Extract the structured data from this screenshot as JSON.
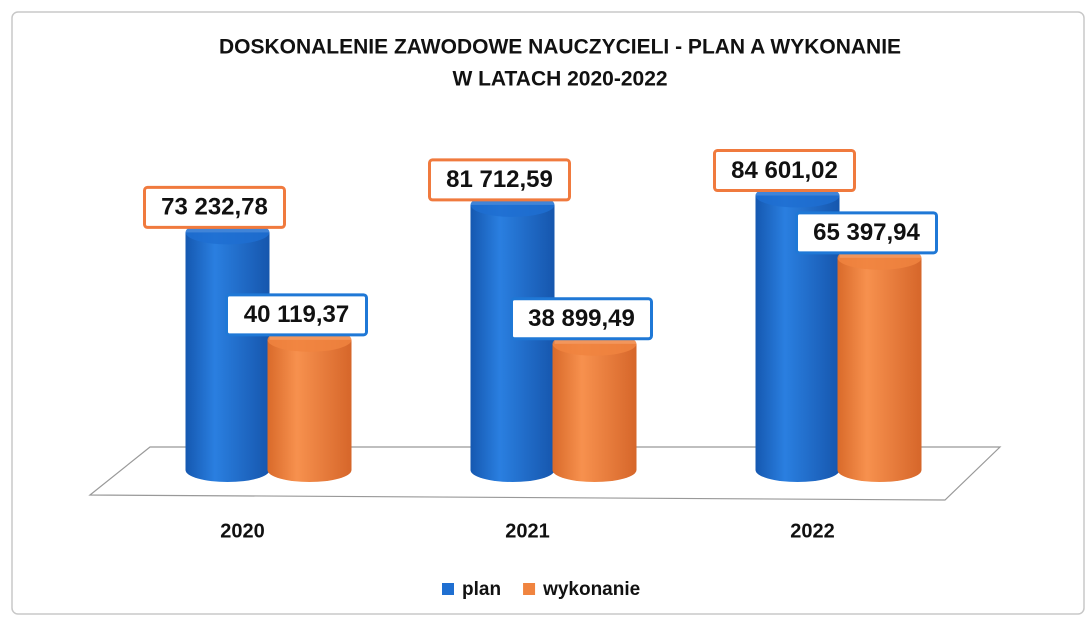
{
  "chart_data": {
    "type": "bar3d",
    "title": [
      "DOSKONALENIE ZAWODOWE NAUCZYCIELI - PLAN A WYKONANIE",
      "W LATACH 2020-2022"
    ],
    "categories": [
      "2020",
      "2021",
      "2022"
    ],
    "series": [
      {
        "name": "plan",
        "color": "#1f6fd1",
        "label_border": "#f07a3e",
        "values": [
          73232.78,
          81712.59,
          84601.02
        ],
        "value_labels": [
          "73 232,78",
          "81 712,59",
          "84 601,02"
        ]
      },
      {
        "name": "wykonanie",
        "color": "#f0843f",
        "label_border": "#1f78d6",
        "values": [
          40119.37,
          38899.49,
          65397.94
        ],
        "value_labels": [
          "40 119,37",
          "38 899,49",
          "65 397,94"
        ]
      }
    ],
    "ylim": [
      0,
      90000
    ],
    "legend": "bottom"
  }
}
